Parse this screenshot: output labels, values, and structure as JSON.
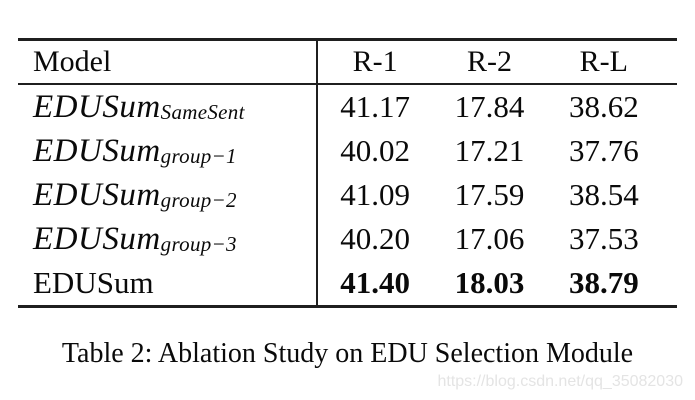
{
  "table": {
    "header": {
      "model": "Model",
      "cols": [
        "R-1",
        "R-2",
        "R-L"
      ]
    },
    "rows": [
      {
        "name": "EDUSum",
        "subscript": "SameSent",
        "values": [
          "41.17",
          "17.84",
          "38.62"
        ]
      },
      {
        "name": "EDUSum",
        "subscript": "group−1",
        "values": [
          "40.02",
          "17.21",
          "37.76"
        ]
      },
      {
        "name": "EDUSum",
        "subscript": "group−2",
        "values": [
          "41.09",
          "17.59",
          "38.54"
        ]
      },
      {
        "name": "EDUSum",
        "subscript": "group−3",
        "values": [
          "40.20",
          "17.06",
          "37.53"
        ]
      },
      {
        "name": "EDUSum",
        "subscript": "",
        "values": [
          "41.40",
          "18.03",
          "38.79"
        ]
      }
    ]
  },
  "caption": "Table 2: Ablation Study on EDU Selection Module",
  "watermark": "https://blog.csdn.net/qq_35082030",
  "colors": {
    "rule": "#1f1f1f",
    "text": "#0a0a0a",
    "watermark": "#e4e4e4",
    "bg": "#ffffff"
  }
}
